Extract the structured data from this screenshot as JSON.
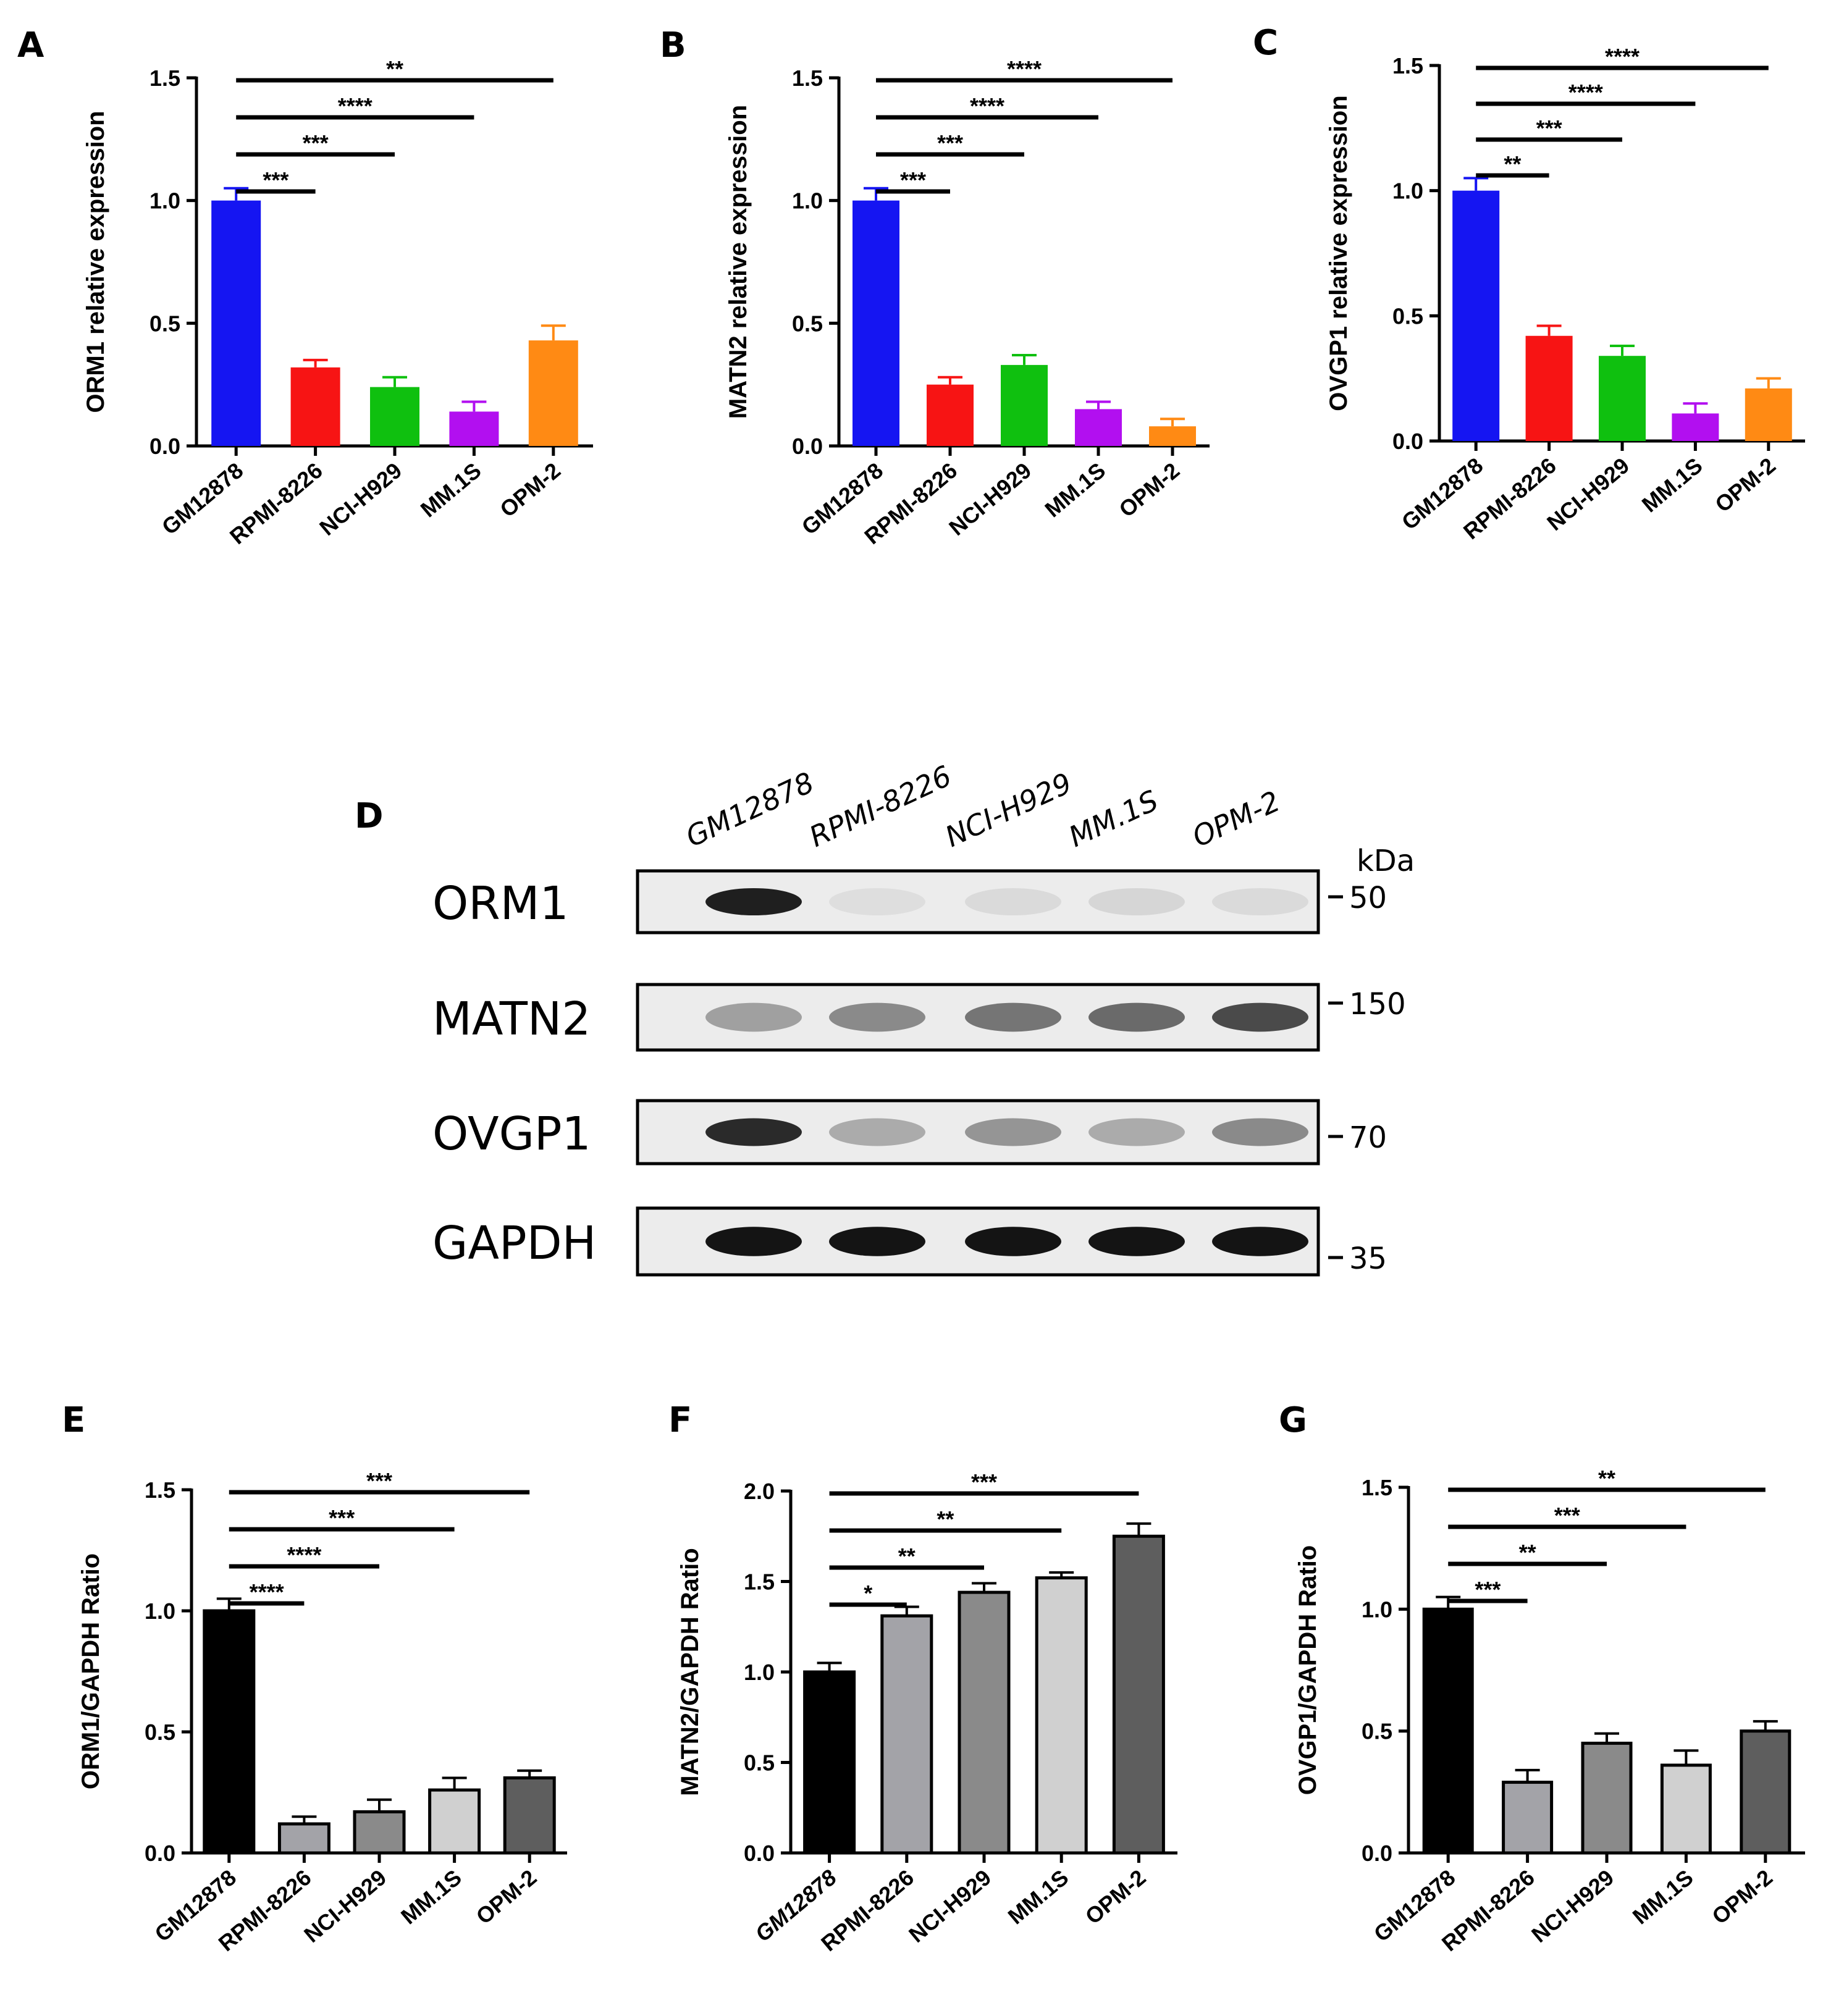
{
  "chart_data": [
    {
      "panel": "A",
      "type": "bar",
      "categories": [
        "GM12878",
        "RPMI-8226",
        "NCI-H929",
        "MM.1S",
        "OPM-2"
      ],
      "values": [
        1.0,
        0.32,
        0.24,
        0.14,
        0.43
      ],
      "errors": [
        0.05,
        0.03,
        0.04,
        0.04,
        0.06
      ],
      "colors": [
        "#1515f2",
        "#f71414",
        "#0fc00f",
        "#b20ff0",
        "#ff8a14"
      ],
      "ylabel": "ORM1 relative expression",
      "ylim": [
        0,
        1.5
      ],
      "yticks": [
        "0.0",
        "0.5",
        "1.0",
        "1.5"
      ],
      "significance": [
        {
          "from": 0,
          "to": 1,
          "label": "***"
        },
        {
          "from": 0,
          "to": 2,
          "label": "***"
        },
        {
          "from": 0,
          "to": 3,
          "label": "****"
        },
        {
          "from": 0,
          "to": 4,
          "label": "**"
        }
      ]
    },
    {
      "panel": "B",
      "type": "bar",
      "categories": [
        "GM12878",
        "RPMI-8226",
        "NCI-H929",
        "MM.1S",
        "OPM-2"
      ],
      "values": [
        1.0,
        0.25,
        0.33,
        0.15,
        0.08
      ],
      "errors": [
        0.05,
        0.03,
        0.04,
        0.03,
        0.03
      ],
      "colors": [
        "#1515f2",
        "#f71414",
        "#0fc00f",
        "#b20ff0",
        "#ff8a14"
      ],
      "ylabel": "MATN2 relative expression",
      "ylim": [
        0,
        1.5
      ],
      "yticks": [
        "0.0",
        "0.5",
        "1.0",
        "1.5"
      ],
      "significance": [
        {
          "from": 0,
          "to": 1,
          "label": "***"
        },
        {
          "from": 0,
          "to": 2,
          "label": "***"
        },
        {
          "from": 0,
          "to": 3,
          "label": "****"
        },
        {
          "from": 0,
          "to": 4,
          "label": "****"
        }
      ]
    },
    {
      "panel": "C",
      "type": "bar",
      "categories": [
        "GM12878",
        "RPMI-8226",
        "NCI-H929",
        "MM.1S",
        "OPM-2"
      ],
      "values": [
        1.0,
        0.42,
        0.34,
        0.11,
        0.21
      ],
      "errors": [
        0.05,
        0.04,
        0.04,
        0.04,
        0.04
      ],
      "colors": [
        "#1515f2",
        "#f71414",
        "#0fc00f",
        "#b20ff0",
        "#ff8a14"
      ],
      "ylabel": "OVGP1 relative expression",
      "ylim": [
        0,
        1.5
      ],
      "yticks": [
        "0.0",
        "0.5",
        "1.0",
        "1.5"
      ],
      "significance": [
        {
          "from": 0,
          "to": 1,
          "label": "**"
        },
        {
          "from": 0,
          "to": 2,
          "label": "***"
        },
        {
          "from": 0,
          "to": 3,
          "label": "****"
        },
        {
          "from": 0,
          "to": 4,
          "label": "****"
        }
      ]
    },
    {
      "panel": "E",
      "type": "bar",
      "categories": [
        "GM12878",
        "RPMI-8226",
        "NCI-H929",
        "MM.1S",
        "OPM-2"
      ],
      "values": [
        1.0,
        0.12,
        0.17,
        0.26,
        0.31
      ],
      "errors": [
        0.05,
        0.03,
        0.05,
        0.05,
        0.03
      ],
      "colors": [
        "#000000",
        "#a3a3a8",
        "#8a8a8a",
        "#d0d0d0",
        "#5e5e5e"
      ],
      "ylabel": "ORM1/GAPDH Ratio",
      "ylim": [
        0,
        1.5
      ],
      "yticks": [
        "0.0",
        "0.5",
        "1.0",
        "1.5"
      ],
      "significance": [
        {
          "from": 0,
          "to": 1,
          "label": "****"
        },
        {
          "from": 0,
          "to": 2,
          "label": "****"
        },
        {
          "from": 0,
          "to": 3,
          "label": "***"
        },
        {
          "from": 0,
          "to": 4,
          "label": "***"
        }
      ]
    },
    {
      "panel": "F",
      "type": "bar",
      "categories": [
        "GM12878",
        "RPMI-8226",
        "NCI-H929",
        "MM.1S",
        "OPM-2"
      ],
      "values": [
        1.0,
        1.31,
        1.44,
        1.52,
        1.75
      ],
      "errors": [
        0.05,
        0.05,
        0.05,
        0.03,
        0.07
      ],
      "colors": [
        "#000000",
        "#a3a3a8",
        "#8a8a8a",
        "#d0d0d0",
        "#5e5e5e"
      ],
      "ylabel": "MATN2/GAPDH Ratio",
      "ylim": [
        0,
        2.0
      ],
      "yticks": [
        "0.0",
        "0.5",
        "1.0",
        "1.5",
        "2.0"
      ],
      "significance": [
        {
          "from": 0,
          "to": 1,
          "label": "*"
        },
        {
          "from": 0,
          "to": 2,
          "label": "**"
        },
        {
          "from": 0,
          "to": 3,
          "label": "**"
        },
        {
          "from": 0,
          "to": 4,
          "label": "***"
        }
      ]
    },
    {
      "panel": "G",
      "type": "bar",
      "categories": [
        "GM12878",
        "RPMI-8226",
        "NCI-H929",
        "MM.1S",
        "OPM-2"
      ],
      "values": [
        1.0,
        0.29,
        0.45,
        0.36,
        0.5
      ],
      "errors": [
        0.05,
        0.05,
        0.04,
        0.06,
        0.04
      ],
      "colors": [
        "#000000",
        "#a3a3a8",
        "#8a8a8a",
        "#d0d0d0",
        "#5e5e5e"
      ],
      "ylabel": "OVGP1/GAPDH Ratio",
      "ylim": [
        0,
        1.5
      ],
      "yticks": [
        "0.0",
        "0.5",
        "1.0",
        "1.5"
      ],
      "significance": [
        {
          "from": 0,
          "to": 1,
          "label": "***"
        },
        {
          "from": 0,
          "to": 2,
          "label": "**"
        },
        {
          "from": 0,
          "to": 3,
          "label": "***"
        },
        {
          "from": 0,
          "to": 4,
          "label": "**"
        }
      ]
    }
  ],
  "blot": {
    "panel": "D",
    "lanes": [
      "GM12878",
      "RPMI-8226",
      "NCI-H929",
      "MM.1S",
      "OPM-2"
    ],
    "kda_label": "kDa",
    "rows": [
      {
        "label": "ORM1",
        "marker": "50",
        "intensities": [
          0.95,
          0.06,
          0.08,
          0.1,
          0.08
        ]
      },
      {
        "label": "MATN2",
        "marker": "150",
        "intensities": [
          0.35,
          0.45,
          0.55,
          0.6,
          0.75
        ]
      },
      {
        "label": "OVGP1",
        "marker": "70",
        "intensities": [
          0.9,
          0.3,
          0.4,
          0.3,
          0.45
        ]
      },
      {
        "label": "GAPDH",
        "marker": "35",
        "intensities": [
          1.0,
          1.0,
          1.0,
          1.0,
          1.0
        ]
      }
    ]
  }
}
